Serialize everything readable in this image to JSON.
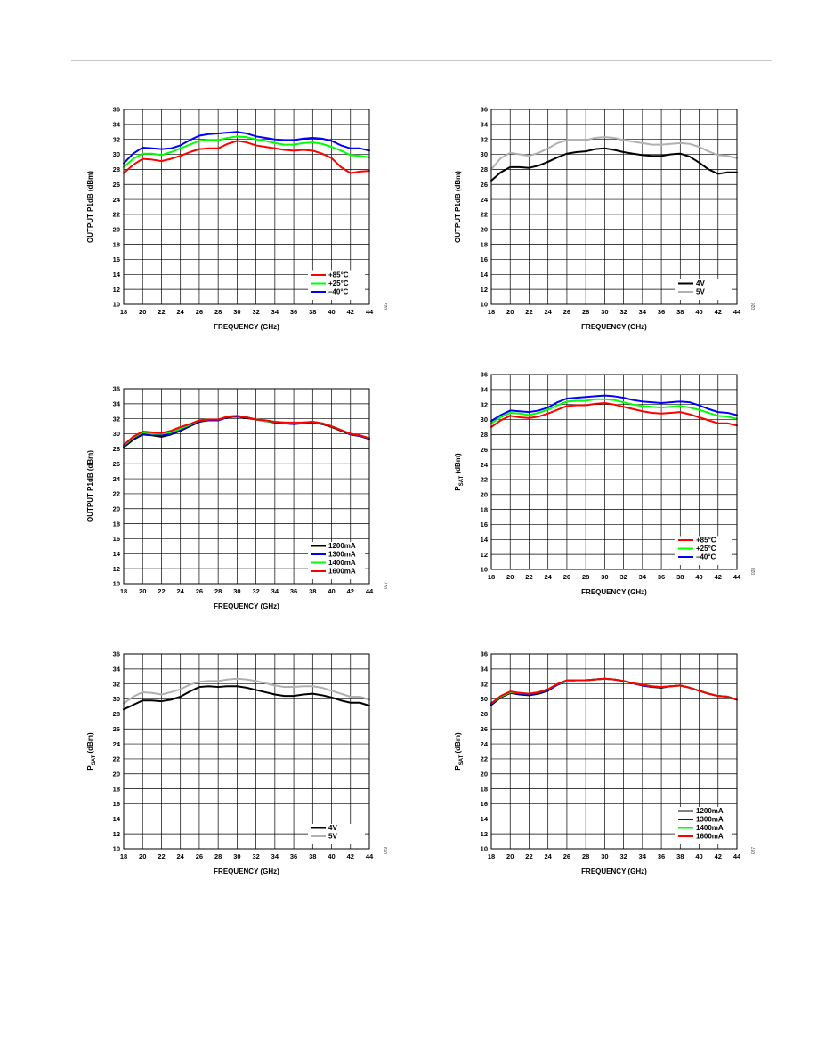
{
  "chart_data": [
    {
      "type": "line",
      "xlabel": "FREQUENCY (GHz)",
      "ylabel": "OUTPUT P1dB (dBm)",
      "xlim": [
        18,
        44
      ],
      "ylim": [
        10,
        36
      ],
      "x_ticks": [
        18,
        20,
        22,
        24,
        26,
        28,
        30,
        32,
        34,
        36,
        38,
        40,
        42,
        44
      ],
      "y_ticks": [
        10,
        12,
        14,
        16,
        18,
        20,
        22,
        24,
        26,
        28,
        30,
        32,
        34,
        36
      ],
      "grid": true,
      "legend_position": "bottom-right",
      "figure_id": "022",
      "x": [
        18,
        19,
        20,
        21,
        22,
        23,
        24,
        25,
        26,
        27,
        28,
        29,
        30,
        31,
        32,
        33,
        34,
        35,
        36,
        37,
        38,
        39,
        40,
        41,
        42,
        43,
        44
      ],
      "series": [
        {
          "name": "+85°C",
          "color": "#ff0000",
          "values": [
            27.5,
            28.6,
            29.4,
            29.3,
            29.1,
            29.4,
            29.8,
            30.3,
            30.7,
            30.8,
            30.8,
            31.4,
            31.8,
            31.6,
            31.2,
            31.0,
            30.8,
            30.6,
            30.5,
            30.6,
            30.5,
            30.1,
            29.5,
            28.3,
            27.5,
            27.7,
            27.8
          ]
        },
        {
          "name": "+25°C",
          "color": "#00ff00",
          "values": [
            28.3,
            29.4,
            30.1,
            30.1,
            29.9,
            30.3,
            30.8,
            31.3,
            31.8,
            31.9,
            31.9,
            32.2,
            32.4,
            32.3,
            32.0,
            31.8,
            31.5,
            31.3,
            31.3,
            31.5,
            31.6,
            31.4,
            31.0,
            30.5,
            29.9,
            29.8,
            29.6
          ]
        },
        {
          "name": "–40°C",
          "color": "#0000ff",
          "values": [
            28.8,
            30.1,
            30.9,
            30.8,
            30.7,
            30.8,
            31.2,
            31.9,
            32.5,
            32.7,
            32.8,
            32.9,
            33.0,
            32.8,
            32.4,
            32.2,
            32.0,
            31.9,
            31.9,
            32.1,
            32.2,
            32.1,
            31.8,
            31.2,
            30.8,
            30.8,
            30.5
          ]
        }
      ]
    },
    {
      "type": "line",
      "xlabel": "FREQUENCY (GHz)",
      "ylabel": "OUTPUT P1dB (dBm)",
      "xlim": [
        18,
        44
      ],
      "ylim": [
        10,
        36
      ],
      "x_ticks": [
        18,
        20,
        22,
        24,
        26,
        28,
        30,
        32,
        34,
        36,
        38,
        40,
        42,
        44
      ],
      "y_ticks": [
        10,
        12,
        14,
        16,
        18,
        20,
        22,
        24,
        26,
        28,
        30,
        32,
        34,
        36
      ],
      "grid": true,
      "legend_position": "bottom-right",
      "figure_id": "026",
      "x": [
        18,
        19,
        20,
        21,
        22,
        23,
        24,
        25,
        26,
        27,
        28,
        29,
        30,
        31,
        32,
        33,
        34,
        35,
        36,
        37,
        38,
        39,
        40,
        41,
        42,
        43,
        44
      ],
      "series": [
        {
          "name": "4V",
          "color": "#000000",
          "values": [
            26.5,
            27.6,
            28.3,
            28.3,
            28.2,
            28.5,
            29.0,
            29.6,
            30.1,
            30.3,
            30.4,
            30.7,
            30.8,
            30.6,
            30.3,
            30.1,
            29.9,
            29.8,
            29.8,
            30.0,
            30.1,
            29.7,
            28.9,
            28.0,
            27.4,
            27.6,
            27.6
          ]
        },
        {
          "name": "5V",
          "color": "#b0b0b0",
          "values": [
            28.0,
            29.5,
            30.2,
            30.0,
            29.8,
            30.2,
            30.8,
            31.5,
            31.9,
            31.9,
            31.9,
            32.2,
            32.3,
            32.2,
            31.9,
            31.7,
            31.5,
            31.3,
            31.3,
            31.4,
            31.5,
            31.4,
            31.0,
            30.4,
            29.9,
            29.8,
            29.5
          ]
        }
      ]
    },
    {
      "type": "line",
      "xlabel": "FREQUENCY (GHz)",
      "ylabel": "OUTPUT P1dB (dBm)",
      "xlim": [
        18,
        44
      ],
      "ylim": [
        10,
        36
      ],
      "x_ticks": [
        18,
        20,
        22,
        24,
        26,
        28,
        30,
        32,
        34,
        36,
        38,
        40,
        42,
        44
      ],
      "y_ticks": [
        10,
        12,
        14,
        16,
        18,
        20,
        22,
        24,
        26,
        28,
        30,
        32,
        34,
        36
      ],
      "grid": true,
      "legend_position": "bottom-right",
      "figure_id": "027",
      "x": [
        18,
        19,
        20,
        21,
        22,
        23,
        24,
        25,
        26,
        27,
        28,
        29,
        30,
        31,
        32,
        33,
        34,
        35,
        36,
        37,
        38,
        39,
        40,
        41,
        42,
        43,
        44
      ],
      "series": [
        {
          "name": "1200mA",
          "color": "#000000",
          "values": [
            28.2,
            29.2,
            29.9,
            29.8,
            29.6,
            29.9,
            30.4,
            31.0,
            31.6,
            31.8,
            31.8,
            32.2,
            32.3,
            32.1,
            31.9,
            31.7,
            31.5,
            31.4,
            31.3,
            31.4,
            31.5,
            31.3,
            30.9,
            30.4,
            29.9,
            29.7,
            29.3
          ]
        },
        {
          "name": "1300mA",
          "color": "#0000ff",
          "values": [
            28.3,
            29.4,
            30.0,
            29.9,
            29.8,
            30.0,
            30.5,
            31.1,
            31.7,
            31.8,
            31.8,
            32.2,
            32.3,
            32.2,
            31.9,
            31.7,
            31.6,
            31.4,
            31.3,
            31.5,
            31.6,
            31.4,
            31.0,
            30.5,
            29.9,
            29.7,
            29.4
          ]
        },
        {
          "name": "1400mA",
          "color": "#00ff00",
          "values": [
            28.4,
            29.5,
            30.2,
            30.0,
            30.0,
            30.2,
            30.7,
            31.2,
            31.8,
            31.9,
            31.9,
            32.3,
            32.4,
            32.2,
            31.9,
            31.7,
            31.6,
            31.5,
            31.4,
            31.5,
            31.6,
            31.4,
            31.0,
            30.5,
            30.0,
            29.8,
            29.4
          ]
        },
        {
          "name": "1600mA",
          "color": "#ff0000",
          "values": [
            28.5,
            29.6,
            30.3,
            30.2,
            30.1,
            30.4,
            30.9,
            31.3,
            31.8,
            31.9,
            31.9,
            32.3,
            32.4,
            32.2,
            31.9,
            31.8,
            31.6,
            31.5,
            31.5,
            31.5,
            31.6,
            31.4,
            31.0,
            30.5,
            30.0,
            29.8,
            29.4
          ]
        }
      ]
    },
    {
      "type": "line",
      "xlabel": "FREQUENCY (GHz)",
      "ylabel_main": "P",
      "ylabel_sub": "SAT",
      "ylabel_tail": " (dBm)",
      "xlim": [
        18,
        44
      ],
      "ylim": [
        10,
        36
      ],
      "x_ticks": [
        18,
        20,
        22,
        24,
        26,
        28,
        30,
        32,
        34,
        36,
        38,
        40,
        42,
        44
      ],
      "y_ticks": [
        10,
        12,
        14,
        16,
        18,
        20,
        22,
        24,
        26,
        28,
        30,
        32,
        34,
        36
      ],
      "grid": true,
      "legend_position": "bottom-right",
      "figure_id": "028",
      "x": [
        18,
        19,
        20,
        21,
        22,
        23,
        24,
        25,
        26,
        27,
        28,
        29,
        30,
        31,
        32,
        33,
        34,
        35,
        36,
        37,
        38,
        39,
        40,
        41,
        42,
        43,
        44
      ],
      "series": [
        {
          "name": "+85°C",
          "color": "#ff0000",
          "values": [
            29.0,
            29.9,
            30.5,
            30.3,
            30.2,
            30.4,
            30.8,
            31.3,
            31.8,
            31.9,
            31.9,
            32.1,
            32.2,
            32.0,
            31.7,
            31.4,
            31.1,
            30.9,
            30.8,
            30.9,
            31.0,
            30.7,
            30.3,
            29.9,
            29.5,
            29.5,
            29.2
          ]
        },
        {
          "name": "+25°C",
          "color": "#00ff00",
          "values": [
            29.5,
            30.3,
            30.9,
            30.8,
            30.6,
            30.9,
            31.3,
            31.9,
            32.4,
            32.5,
            32.5,
            32.7,
            32.7,
            32.6,
            32.3,
            32.0,
            31.8,
            31.7,
            31.6,
            31.7,
            31.8,
            31.6,
            31.3,
            30.9,
            30.5,
            30.4,
            30.1
          ]
        },
        {
          "name": "–40°C",
          "color": "#0000ff",
          "values": [
            29.8,
            30.6,
            31.2,
            31.1,
            31.0,
            31.2,
            31.6,
            32.3,
            32.8,
            32.9,
            33.0,
            33.1,
            33.2,
            33.1,
            32.9,
            32.6,
            32.4,
            32.3,
            32.2,
            32.3,
            32.4,
            32.3,
            31.9,
            31.4,
            31.0,
            30.9,
            30.6
          ]
        }
      ]
    },
    {
      "type": "line",
      "xlabel": "FREQUENCY (GHz)",
      "ylabel_main": "P",
      "ylabel_sub": "SAT",
      "ylabel_tail": " (dBm)",
      "xlim": [
        18,
        44
      ],
      "ylim": [
        10,
        36
      ],
      "x_ticks": [
        18,
        20,
        22,
        24,
        26,
        28,
        30,
        32,
        34,
        36,
        38,
        40,
        42,
        44
      ],
      "y_ticks": [
        10,
        12,
        14,
        16,
        18,
        20,
        22,
        24,
        26,
        28,
        30,
        32,
        34,
        36
      ],
      "grid": true,
      "legend_position": "bottom-right",
      "figure_id": "029",
      "x": [
        18,
        19,
        20,
        21,
        22,
        23,
        24,
        25,
        26,
        27,
        28,
        29,
        30,
        31,
        32,
        33,
        34,
        35,
        36,
        37,
        38,
        39,
        40,
        41,
        42,
        43,
        44
      ],
      "series": [
        {
          "name": "4V",
          "color": "#000000",
          "values": [
            28.6,
            29.2,
            29.8,
            29.8,
            29.7,
            29.9,
            30.3,
            31.0,
            31.6,
            31.7,
            31.6,
            31.7,
            31.7,
            31.5,
            31.2,
            30.9,
            30.6,
            30.4,
            30.4,
            30.6,
            30.7,
            30.5,
            30.2,
            29.8,
            29.5,
            29.5,
            29.1
          ]
        },
        {
          "name": "5V",
          "color": "#b0b0b0",
          "values": [
            29.4,
            30.3,
            30.9,
            30.8,
            30.6,
            30.9,
            31.3,
            31.9,
            32.3,
            32.4,
            32.4,
            32.6,
            32.7,
            32.6,
            32.4,
            32.1,
            31.8,
            31.6,
            31.6,
            31.7,
            31.7,
            31.5,
            31.1,
            30.7,
            30.3,
            30.3,
            29.9
          ]
        }
      ]
    },
    {
      "type": "line",
      "xlabel": "FREQUENCY (GHz)",
      "ylabel_main": "P",
      "ylabel_sub": "SAT",
      "ylabel_tail": " (dBm)",
      "xlim": [
        18,
        44
      ],
      "ylim": [
        10,
        36
      ],
      "x_ticks": [
        18,
        20,
        22,
        24,
        26,
        28,
        30,
        32,
        34,
        36,
        38,
        40,
        42,
        44
      ],
      "y_ticks": [
        10,
        12,
        14,
        16,
        18,
        20,
        22,
        24,
        26,
        28,
        30,
        32,
        34,
        36
      ],
      "grid": true,
      "legend_position": "bottom-right",
      "figure_id": "027",
      "x": [
        18,
        19,
        20,
        21,
        22,
        23,
        24,
        25,
        26,
        27,
        28,
        29,
        30,
        31,
        32,
        33,
        34,
        35,
        36,
        37,
        38,
        39,
        40,
        41,
        42,
        43,
        44
      ],
      "series": [
        {
          "name": "1200mA",
          "color": "#000000",
          "values": [
            29.2,
            30.2,
            30.8,
            30.6,
            30.5,
            30.7,
            31.1,
            31.9,
            32.4,
            32.5,
            32.5,
            32.6,
            32.7,
            32.6,
            32.4,
            32.1,
            31.8,
            31.6,
            31.5,
            31.7,
            31.8,
            31.5,
            31.1,
            30.7,
            30.4,
            30.3,
            29.9
          ]
        },
        {
          "name": "1300mA",
          "color": "#0000ff",
          "values": [
            29.3,
            30.3,
            30.9,
            30.7,
            30.6,
            30.8,
            31.2,
            31.9,
            32.4,
            32.5,
            32.5,
            32.6,
            32.7,
            32.6,
            32.4,
            32.1,
            31.8,
            31.6,
            31.6,
            31.7,
            31.8,
            31.5,
            31.1,
            30.7,
            30.4,
            30.3,
            29.9
          ]
        },
        {
          "name": "1400mA",
          "color": "#00ff00",
          "values": [
            29.4,
            30.3,
            30.9,
            30.8,
            30.7,
            30.9,
            31.3,
            32.0,
            32.4,
            32.5,
            32.5,
            32.6,
            32.7,
            32.6,
            32.4,
            32.1,
            31.9,
            31.7,
            31.6,
            31.7,
            31.8,
            31.5,
            31.1,
            30.7,
            30.4,
            30.3,
            29.9
          ]
        },
        {
          "name": "1600mA",
          "color": "#ff0000",
          "values": [
            29.4,
            30.4,
            31.0,
            30.8,
            30.7,
            30.9,
            31.3,
            32.0,
            32.5,
            32.5,
            32.5,
            32.6,
            32.7,
            32.6,
            32.4,
            32.1,
            31.9,
            31.7,
            31.6,
            31.7,
            31.8,
            31.5,
            31.1,
            30.7,
            30.4,
            30.3,
            29.9
          ]
        }
      ]
    }
  ]
}
